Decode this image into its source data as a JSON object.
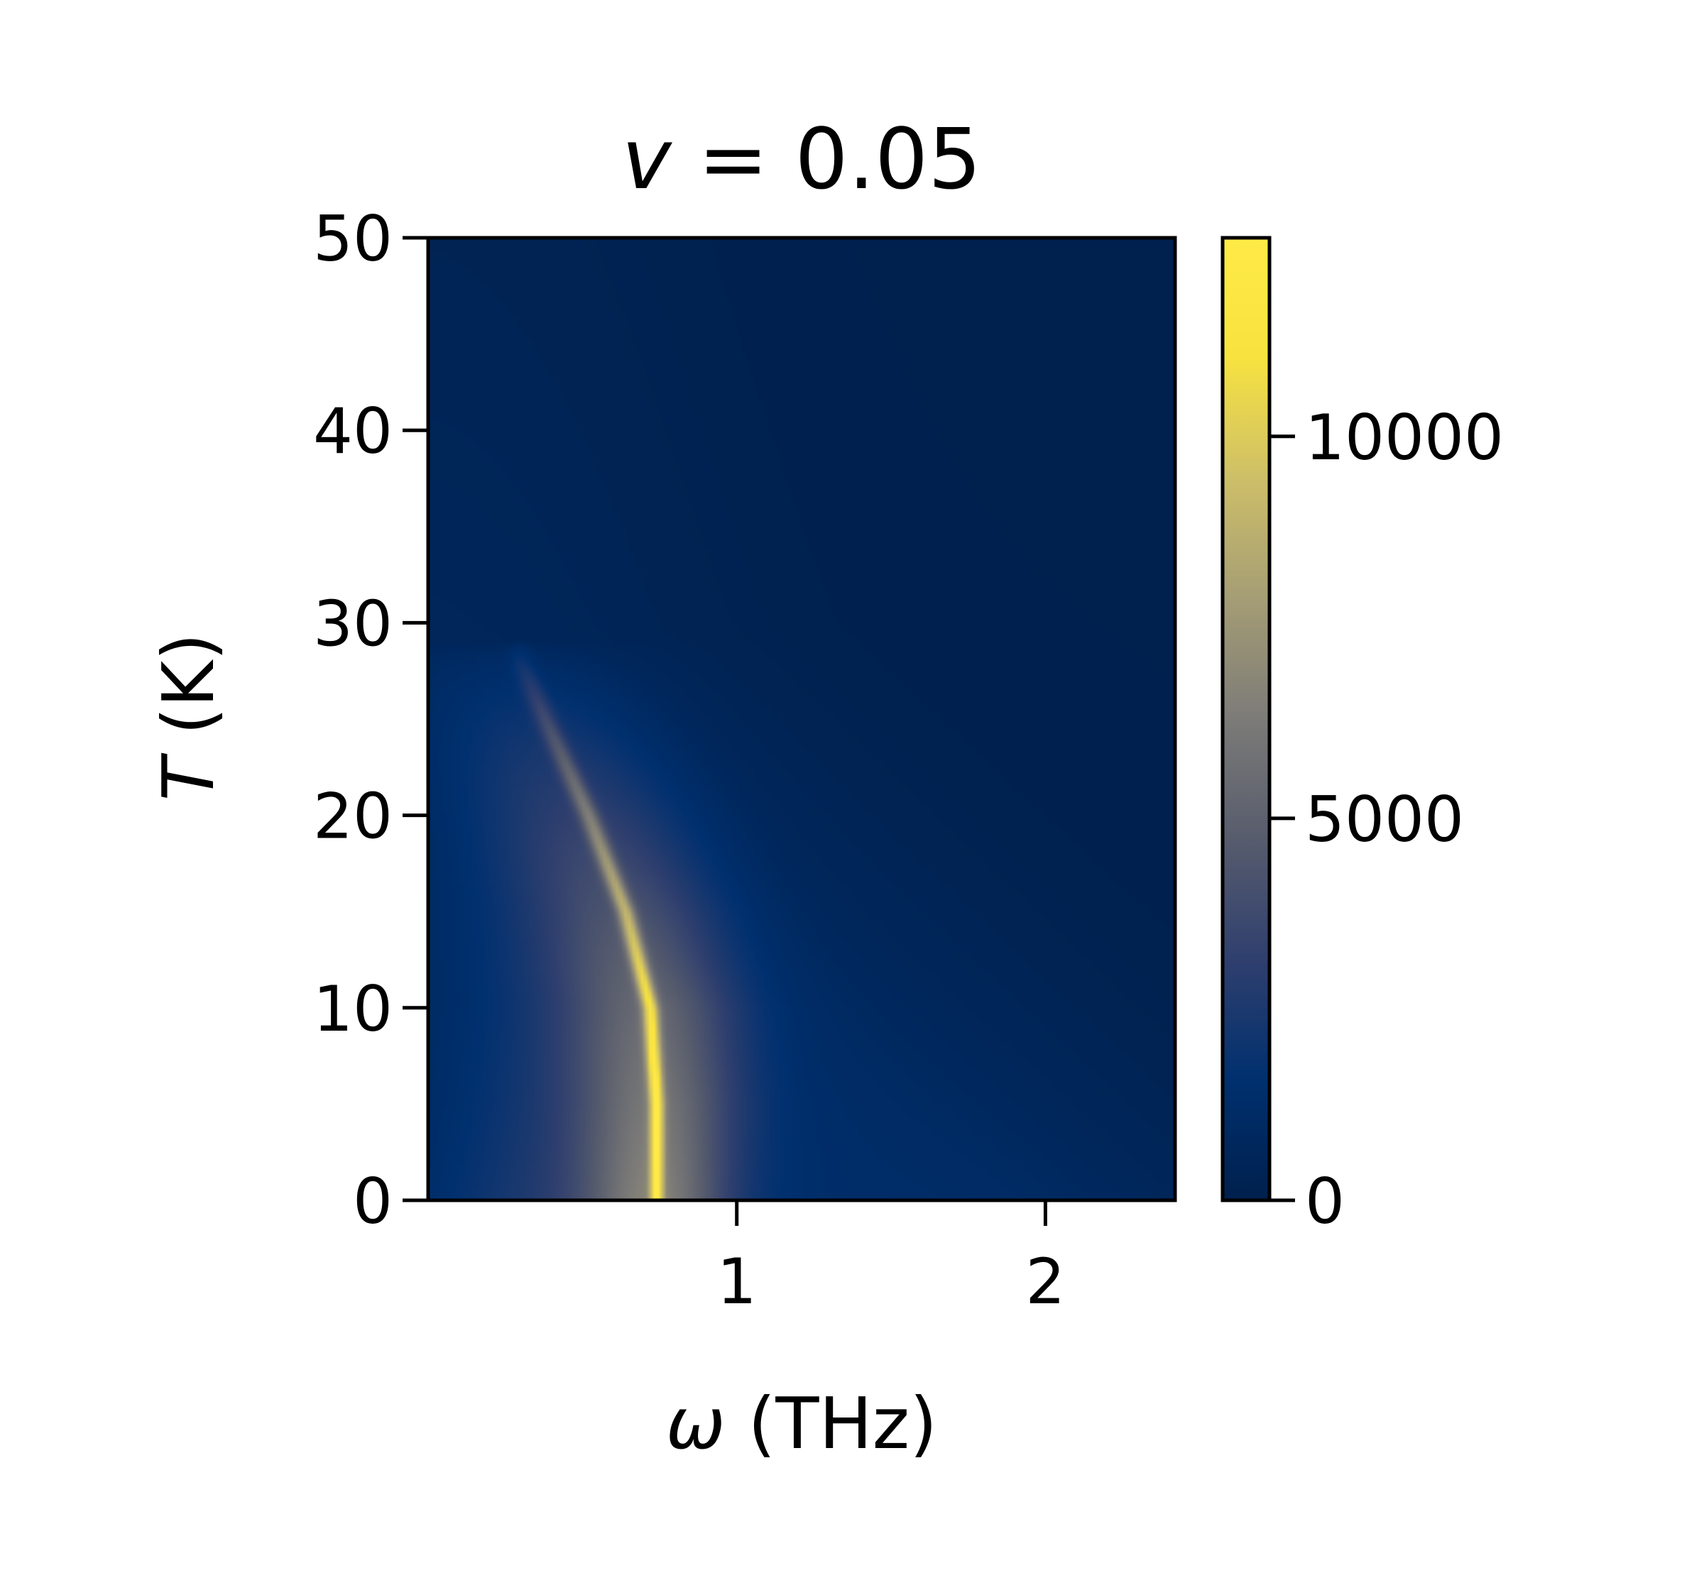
{
  "chart_data": {
    "type": "heatmap",
    "title": {
      "symbol": "v",
      "rest": " = 0.05"
    },
    "xlabel": {
      "symbol": "ω",
      "rest": " (THz)"
    },
    "ylabel": {
      "symbol": "T",
      "rest": " (K)"
    },
    "xlim": [
      0,
      2.42
    ],
    "ylim": [
      0,
      50
    ],
    "x_ticks": [
      {
        "value": 1,
        "label": "1"
      },
      {
        "value": 2,
        "label": "2"
      }
    ],
    "y_ticks": [
      {
        "value": 0,
        "label": "0"
      },
      {
        "value": 10,
        "label": "10"
      },
      {
        "value": 20,
        "label": "20"
      },
      {
        "value": 30,
        "label": "30"
      },
      {
        "value": 40,
        "label": "40"
      },
      {
        "value": 50,
        "label": "50"
      }
    ],
    "colorbar": {
      "colormap": "cividis",
      "range": [
        0,
        12600
      ],
      "ticks": [
        {
          "value": 0,
          "label": "0"
        },
        {
          "value": 5000,
          "label": "5000"
        },
        {
          "value": 10000,
          "label": "10000"
        }
      ],
      "stops": [
        "#00204d",
        "#00306f",
        "#2f3f6e",
        "#575c6d",
        "#7c7b78",
        "#a59d75",
        "#cdbf68",
        "#f7e240",
        "#ffea46"
      ]
    },
    "ridge": {
      "description_points_T_omega": [
        [
          0,
          0.74
        ],
        [
          5,
          0.74
        ],
        [
          10,
          0.72
        ],
        [
          15,
          0.64
        ],
        [
          20,
          0.52
        ],
        [
          25,
          0.38
        ],
        [
          28,
          0.3
        ]
      ],
      "peak_value_at_T0": 12600
    },
    "grid": false
  }
}
